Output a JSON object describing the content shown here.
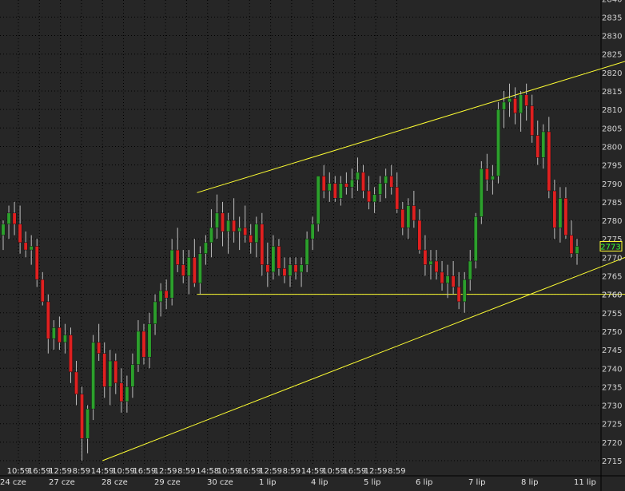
{
  "chart_data": {
    "type": "candlestick",
    "y_axis": {
      "ticks": [
        "2840",
        "2835",
        "2830",
        "2825",
        "2820",
        "2815",
        "2810",
        "2805",
        "2800",
        "2795",
        "2790",
        "2785",
        "2780",
        "2775",
        "2770",
        "2765",
        "2760",
        "2755",
        "2750",
        "2745",
        "2740",
        "2735",
        "2730",
        "2725",
        "2720",
        "2715"
      ],
      "range": [
        2713,
        2842
      ],
      "current_price": "2773",
      "level_label": "2760"
    },
    "x_axis": {
      "time_labels": [
        "10:59",
        "16:59",
        "12:59",
        "8:59",
        "14:59",
        "10:59",
        "16:59",
        "12:59",
        "8:59",
        "14:58",
        "10:59",
        "16:59",
        "12:59",
        "8:59",
        "14:59",
        "10:59",
        "16:59",
        "12:59",
        "8:59"
      ],
      "date_labels": [
        "24 cze",
        "27 cze",
        "28 cze",
        "29 cze",
        "30 cze",
        "1 lip",
        "4 lip",
        "5 lip",
        "6 lip",
        "7 lip",
        "8 lip",
        "11 lip"
      ]
    },
    "trendlines": [
      {
        "name": "channel-top",
        "from": [
          8.5,
          2787.5
        ],
        "to": [
          30,
          2825
        ]
      },
      {
        "name": "channel-bottom",
        "from": [
          4,
          2715
        ],
        "to": [
          30,
          2772.5
        ]
      },
      {
        "name": "horizontal-level",
        "from": [
          8.5,
          2760
        ],
        "to": [
          30,
          2760
        ]
      }
    ],
    "candles": [
      [
        2776,
        2780,
        2772,
        2779
      ],
      [
        2779,
        2784,
        2775,
        2782
      ],
      [
        2782,
        2785,
        2776,
        2779
      ],
      [
        2779,
        2784,
        2771,
        2774
      ],
      [
        2774,
        2777,
        2770,
        2772
      ],
      [
        2772,
        2776,
        2768,
        2773
      ],
      [
        2773,
        2775,
        2762,
        2764
      ],
      [
        2764,
        2766,
        2757,
        2758
      ],
      [
        2758,
        2760,
        2744,
        2748
      ],
      [
        2748,
        2753,
        2745,
        2751
      ],
      [
        2751,
        2754,
        2745,
        2747
      ],
      [
        2747,
        2752,
        2744,
        2749
      ],
      [
        2749,
        2751,
        2736,
        2739
      ],
      [
        2739,
        2742,
        2730,
        2733
      ],
      [
        2733,
        2735,
        2715,
        2721
      ],
      [
        2721,
        2730,
        2717,
        2729
      ],
      [
        2729,
        2749,
        2726,
        2747
      ],
      [
        2747,
        2752,
        2742,
        2744
      ],
      [
        2744,
        2747,
        2732,
        2735
      ],
      [
        2735,
        2745,
        2730,
        2742
      ],
      [
        2742,
        2744,
        2733,
        2736
      ],
      [
        2736,
        2740,
        2728,
        2731
      ],
      [
        2731,
        2738,
        2728,
        2735
      ],
      [
        2735,
        2744,
        2732,
        2741
      ],
      [
        2741,
        2753,
        2739,
        2750
      ],
      [
        2750,
        2752,
        2741,
        2743
      ],
      [
        2743,
        2755,
        2740,
        2752
      ],
      [
        2752,
        2760,
        2749,
        2758
      ],
      [
        2758,
        2763,
        2754,
        2761
      ],
      [
        2761,
        2764,
        2756,
        2759
      ],
      [
        2759,
        2775,
        2757,
        2772
      ],
      [
        2772,
        2778,
        2766,
        2768
      ],
      [
        2768,
        2772,
        2763,
        2765
      ],
      [
        2765,
        2772,
        2760,
        2770
      ],
      [
        2770,
        2775,
        2762,
        2763
      ],
      [
        2763,
        2773,
        2760,
        2771
      ],
      [
        2771,
        2776,
        2768,
        2774
      ],
      [
        2774,
        2783,
        2770,
        2778
      ],
      [
        2778,
        2787,
        2775,
        2782
      ],
      [
        2782,
        2785,
        2773,
        2777
      ],
      [
        2777,
        2782,
        2771,
        2780
      ],
      [
        2780,
        2786,
        2774,
        2777
      ],
      [
        2777,
        2781,
        2772,
        2778
      ],
      [
        2778,
        2784,
        2774,
        2776
      ],
      [
        2776,
        2779,
        2771,
        2774
      ],
      [
        2774,
        2781,
        2770,
        2779
      ],
      [
        2779,
        2782,
        2765,
        2768
      ],
      [
        2768,
        2774,
        2762,
        2766
      ],
      [
        2766,
        2776,
        2764,
        2773
      ],
      [
        2773,
        2775,
        2765,
        2767
      ],
      [
        2767,
        2770,
        2763,
        2765
      ],
      [
        2765,
        2770,
        2762,
        2768
      ],
      [
        2768,
        2770,
        2764,
        2766
      ],
      [
        2766,
        2770,
        2762,
        2768
      ],
      [
        2768,
        2777,
        2766,
        2775
      ],
      [
        2775,
        2781,
        2772,
        2779
      ],
      [
        2779,
        2792,
        2777,
        2792
      ],
      [
        2792,
        2795,
        2786,
        2788
      ],
      [
        2788,
        2793,
        2785,
        2790
      ],
      [
        2790,
        2792,
        2785,
        2786
      ],
      [
        2786,
        2792,
        2784,
        2790
      ],
      [
        2790,
        2793,
        2787,
        2789
      ],
      [
        2789,
        2794,
        2786,
        2791
      ],
      [
        2791,
        2797,
        2788,
        2793
      ],
      [
        2793,
        2795,
        2786,
        2788
      ],
      [
        2788,
        2792,
        2783,
        2785
      ],
      [
        2785,
        2789,
        2782,
        2787
      ],
      [
        2787,
        2792,
        2785,
        2790
      ],
      [
        2790,
        2794,
        2786,
        2792
      ],
      [
        2792,
        2795,
        2787,
        2789
      ],
      [
        2789,
        2793,
        2782,
        2783
      ],
      [
        2783,
        2785,
        2776,
        2778
      ],
      [
        2778,
        2786,
        2775,
        2784
      ],
      [
        2784,
        2788,
        2778,
        2780
      ],
      [
        2780,
        2783,
        2771,
        2772
      ],
      [
        2772,
        2776,
        2765,
        2768
      ],
      [
        2768,
        2772,
        2764,
        2769
      ],
      [
        2769,
        2772,
        2764,
        2766
      ],
      [
        2766,
        2769,
        2761,
        2763
      ],
      [
        2763,
        2768,
        2759,
        2765
      ],
      [
        2765,
        2769,
        2760,
        2762
      ],
      [
        2762,
        2766,
        2756,
        2758
      ],
      [
        2758,
        2766,
        2755,
        2764
      ],
      [
        2764,
        2772,
        2761,
        2769
      ],
      [
        2769,
        2782,
        2767,
        2781
      ],
      [
        2781,
        2796,
        2779,
        2794
      ],
      [
        2794,
        2798,
        2788,
        2791
      ],
      [
        2791,
        2795,
        2787,
        2792
      ],
      [
        2792,
        2812,
        2790,
        2810
      ],
      [
        2810,
        2815,
        2805,
        2812
      ],
      [
        2812,
        2817,
        2808,
        2813
      ],
      [
        2813,
        2816,
        2806,
        2809
      ],
      [
        2809,
        2815,
        2804,
        2814
      ],
      [
        2814,
        2817,
        2807,
        2811
      ],
      [
        2811,
        2814,
        2801,
        2803
      ],
      [
        2803,
        2807,
        2795,
        2797
      ],
      [
        2797,
        2806,
        2794,
        2804
      ],
      [
        2804,
        2808,
        2786,
        2788
      ],
      [
        2788,
        2791,
        2775,
        2778
      ],
      [
        2778,
        2789,
        2774,
        2786
      ],
      [
        2786,
        2789,
        2775,
        2776
      ],
      [
        2776,
        2780,
        2770,
        2771
      ],
      [
        2771,
        2775,
        2768,
        2773
      ]
    ]
  }
}
